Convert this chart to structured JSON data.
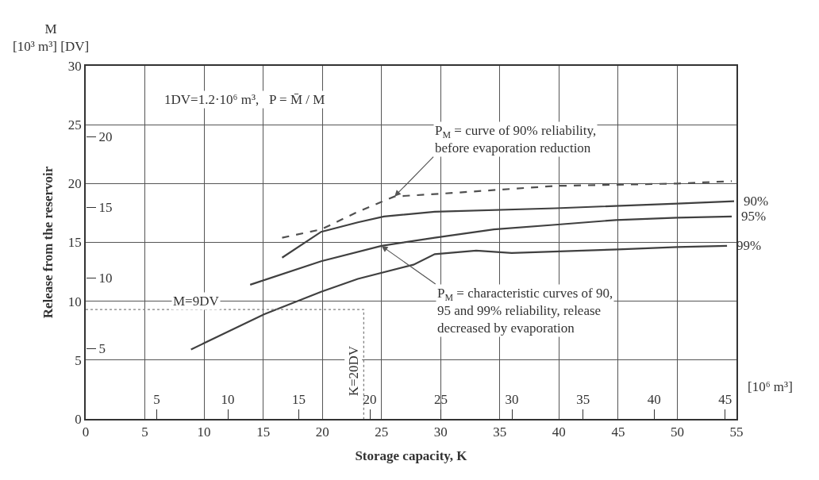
{
  "chart_data": {
    "type": "line",
    "xlabel": "Storage capacity, K",
    "ylabel": "Release from the reservoir",
    "xlim": [
      0,
      55
    ],
    "xticks": [
      0,
      5,
      10,
      15,
      20,
      25,
      30,
      35,
      40,
      45,
      50,
      55
    ],
    "ylim": [
      0,
      30
    ],
    "yticks": [
      0,
      5,
      10,
      15,
      20,
      25,
      30
    ],
    "x2lim": [
      0,
      45.8
    ],
    "x2ticks": [
      5,
      10,
      15,
      20,
      25,
      30,
      35,
      40,
      45
    ],
    "y2lim": [
      0,
      25
    ],
    "y2ticks": [
      5,
      10,
      15,
      20
    ],
    "grid": true,
    "series": [
      {
        "color": "#505050",
        "line_style": "dashed",
        "x": [
          16.6,
          19.9,
          23,
          26.1,
          29.5,
          39.7,
          50,
          54.6
        ],
        "values": [
          15.4,
          16.1,
          17.6,
          18.9,
          19.1,
          19.8,
          20.0,
          20.2
        ]
      },
      {
        "name": "90%",
        "color": "#404040",
        "x": [
          16.6,
          19.9,
          23,
          25.2,
          29.5,
          39.7,
          50,
          54.8
        ],
        "values": [
          13.7,
          15.9,
          16.7,
          17.2,
          17.6,
          17.9,
          18.3,
          18.5
        ]
      },
      {
        "name": "95%",
        "color": "#404040",
        "x": [
          13.9,
          19.9,
          25,
          29.5,
          34.5,
          39.7,
          44.8,
          50,
          54.6
        ],
        "values": [
          11.4,
          13.4,
          14.7,
          15.4,
          16.1,
          16.5,
          16.9,
          17.1,
          17.2
        ]
      },
      {
        "name": "99%",
        "color": "#404040",
        "x": [
          8.9,
          15.1,
          19.9,
          23,
          27.7,
          29.5,
          33,
          36,
          45,
          50,
          54.2
        ],
        "values": [
          5.9,
          8.9,
          10.8,
          11.9,
          13.1,
          14.0,
          14.3,
          14.1,
          14.4,
          14.6,
          14.7
        ]
      },
      {
        "color": "#808080",
        "line_style": "dotted",
        "x": [
          0,
          23.5,
          23.5
        ],
        "values": [
          9.3,
          9.3,
          0
        ]
      }
    ],
    "annotations": [
      "M\n[10³ m³] [DV]",
      "1DV=1.2·10⁶ m³,   P = M̄ / M",
      "[10⁶ m³]",
      {
        "text": "P$_{M}$ = curve of 90% reliability,\nbefore evaporation reduction",
        "x": 26.1,
        "y": 18.9
      },
      {
        "text": "P$_{M}$ = characteristic curves of 90,\n95 and 99% reliability, release\ndecreased by evaporation",
        "x": 25,
        "y": 14.7
      },
      "M=9DV",
      "K=20DV"
    ]
  }
}
